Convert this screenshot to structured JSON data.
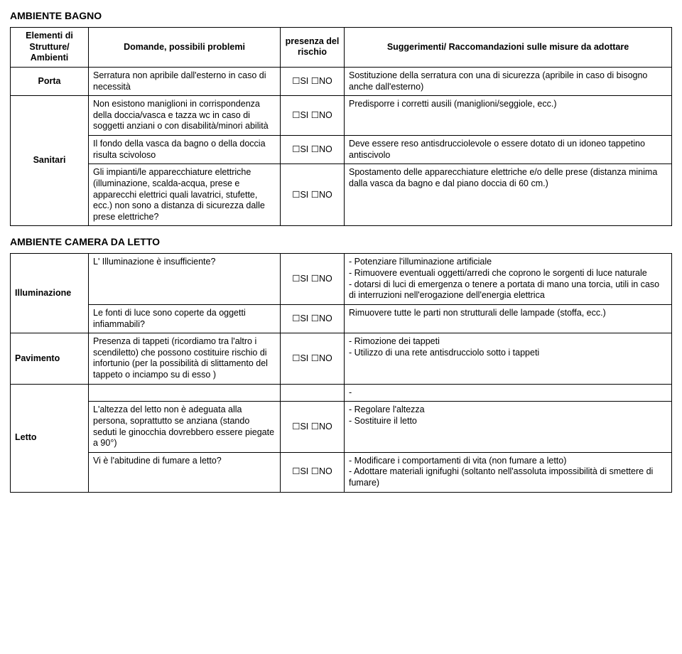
{
  "sectionA": {
    "title": "AMBIENTE BAGNO",
    "headers": {
      "elements": "Elementi di Strutture/ Ambienti",
      "questions": "Domande,\npossibili problemi",
      "risk": "presenza del rischio",
      "suggestions": "Suggerimenti/\nRaccomandazioni sulle misure da adottare"
    },
    "rows": [
      {
        "element": "Porta",
        "question": "Serratura non apribile dall'esterno in caso di necessità",
        "risk": "☐SI ☐NO",
        "suggestion": "Sostituzione della serratura con una di sicurezza (apribile in caso di bisogno anche dall'esterno)"
      },
      {
        "element": "Sanitari",
        "question": "Non esistono maniglioni in corrispondenza della doccia/vasca e tazza wc in caso di soggetti anziani o con disabilità/minori abilità",
        "risk": "☐SI ☐NO",
        "suggestion": "Predisporre i corretti ausili (maniglioni/seggiole, ecc.)"
      },
      {
        "question": "Il fondo della vasca da bagno o della doccia risulta scivoloso",
        "risk": "☐SI ☐NO",
        "suggestion": "Deve essere reso antisdrucciolevole o essere dotato di un idoneo tappetino antiscivolo"
      },
      {
        "question": "Gli impianti/le apparecchiature elettriche (illuminazione, scalda-acqua, prese e apparecchi elettrici quali lavatrici, stufette, ecc.) non sono a distanza di sicurezza dalle prese elettriche?",
        "risk": "☐SI ☐NO",
        "suggestion": "Spostamento delle apparecchiature elettriche e/o delle prese (distanza minima dalla vasca da bagno e dal piano doccia di 60 cm.)"
      }
    ]
  },
  "sectionB": {
    "title": "AMBIENTE CAMERA DA LETTO",
    "rows": [
      {
        "element": "Illuminazione",
        "question": "L' Illuminazione è insufficiente?",
        "risk": "☐SI ☐NO",
        "suggestion_list": [
          "Potenziare l'illuminazione artificiale",
          "Rimuovere eventuali oggetti/arredi che coprono le sorgenti di luce naturale",
          "dotarsi di luci di emergenza o tenere a portata di mano una torcia, utili in caso di interruzioni nell'erogazione dell'energia elettrica"
        ]
      },
      {
        "question": "Le fonti di luce sono coperte da oggetti infiammabili?",
        "risk": "☐SI ☐NO",
        "suggestion": "Rimuovere tutte le parti non strutturali delle lampade (stoffa, ecc.)"
      },
      {
        "element": "Pavimento",
        "question": "Presenza di tappeti (ricordiamo tra l'altro i scendiletto) che possono costituire rischio di infortunio (per la possibilità di slittamento del tappeto o inciampo su di esso )",
        "risk": "☐SI ☐NO",
        "suggestion_list": [
          "Rimozione dei tappeti",
          "Utilizzo di una rete antisdrucciolo sotto i tappeti"
        ]
      },
      {
        "element": "Letto",
        "blank_row": "-",
        "question": "L'altezza del letto non è adeguata alla persona, soprattutto se anziana (stando seduti le ginocchia dovrebbero essere piegate a 90°)",
        "risk": "☐SI ☐NO",
        "suggestion_list": [
          "Regolare l'altezza",
          "Sostituire il letto"
        ]
      },
      {
        "question": "Vi è l'abitudine di fumare a letto?",
        "risk": "☐SI ☐NO",
        "suggestion_list": [
          "Modificare i comportamenti di vita (non fumare a letto)",
          "Adottare materiali ignifughi (soltanto nell'assoluta impossibilità di smettere di fumare)"
        ]
      }
    ]
  }
}
